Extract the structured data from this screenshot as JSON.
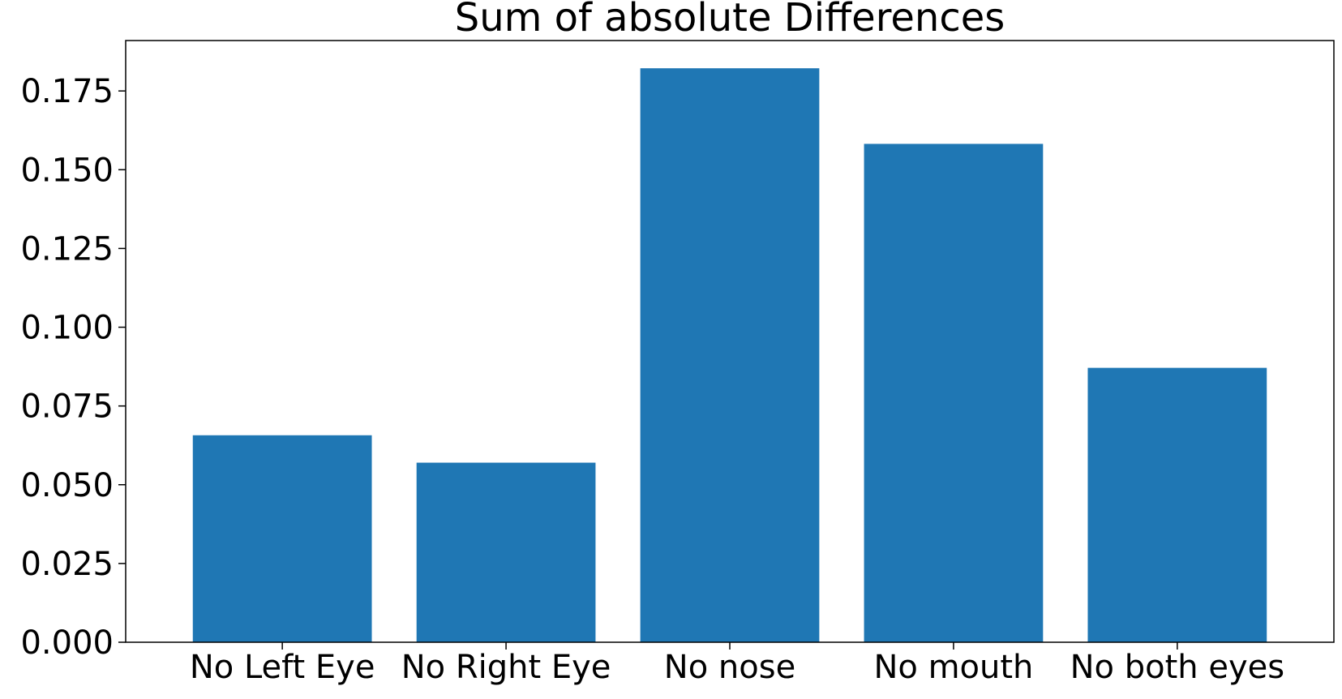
{
  "chart_data": {
    "type": "bar",
    "title": "Sum of absolute Differences",
    "xlabel": "",
    "ylabel": "",
    "categories": [
      "No Left Eye",
      "No Right Eye",
      "No nose",
      "No mouth",
      "No both eyes"
    ],
    "values": [
      0.0657,
      0.057,
      0.1822,
      0.1582,
      0.0871
    ],
    "ylim": [
      0,
      0.191
    ],
    "yticks": [
      "0.000",
      "0.025",
      "0.050",
      "0.075",
      "0.100",
      "0.125",
      "0.150",
      "0.175"
    ],
    "bar_color": "#1f77b4",
    "grid": false,
    "legend": false
  }
}
